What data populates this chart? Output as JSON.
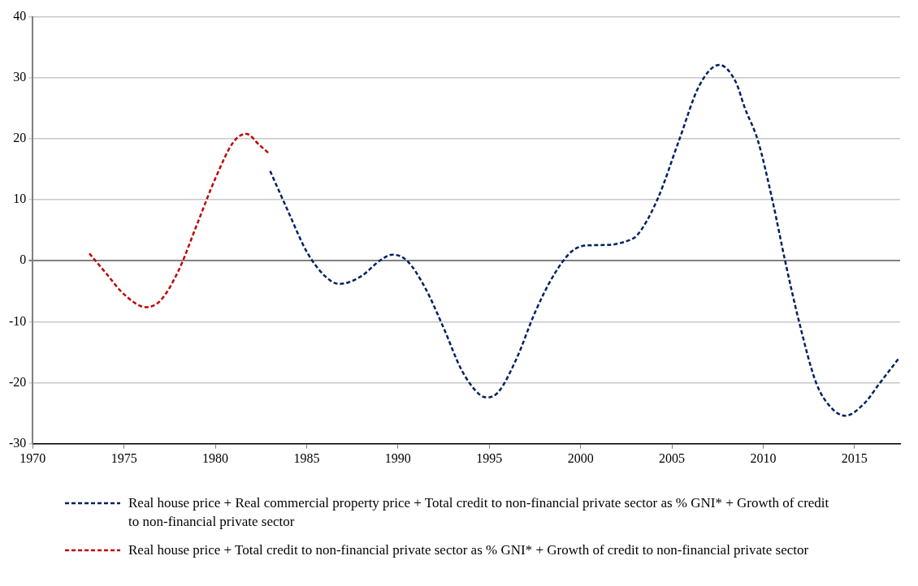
{
  "chart_data": {
    "type": "line",
    "xlim": [
      1970,
      2017.5
    ],
    "xticks": [
      1970,
      1975,
      1980,
      1985,
      1990,
      1995,
      2000,
      2005,
      2010,
      2015
    ],
    "ylim": [
      -30,
      40
    ],
    "yticks": [
      -30,
      -20,
      -10,
      0,
      10,
      20,
      30,
      40
    ],
    "grid": "y",
    "legend": "bottom",
    "line_style": "dashed",
    "marker": "none",
    "series": [
      {
        "name": "Real house price + Real commercial property price + Total credit to non-financial private sector as % GNI* + Growth of credit to non-financial private sector",
        "color": "#002060",
        "x": [
          1983,
          1984,
          1985,
          1986,
          1986.8,
          1988,
          1989,
          1989.7,
          1990.5,
          1991.5,
          1992.5,
          1993.5,
          1994.5,
          1994.9,
          1995.5,
          1996.5,
          1997.5,
          1998.5,
          1999.5,
          2000.3,
          2001.5,
          2002.5,
          2003.1,
          2004.2,
          2005.4,
          2006.5,
          2007.6,
          2008.5,
          2009,
          2009.7,
          2010.5,
          2011.2,
          2012,
          2012.9,
          2013.7,
          2014.5,
          2015.5,
          2016.4,
          2017.4
        ],
        "values": [
          14.7,
          8,
          1.5,
          -2.5,
          -3.8,
          -2.5,
          0,
          1,
          0,
          -4.5,
          -11,
          -18,
          -22,
          -22.4,
          -21.5,
          -16,
          -8.5,
          -2.5,
          1.5,
          2.5,
          2.6,
          3.2,
          4.2,
          10,
          19.8,
          28.7,
          32.1,
          29.3,
          25,
          19.8,
          10,
          0,
          -10.4,
          -20,
          -24,
          -25.4,
          -23.5,
          -20,
          -16.1
        ]
      },
      {
        "name": "Real house price + Total credit to non-financial private sector as % GNI* + Growth of credit to non-financial private sector",
        "color": "#c00000",
        "x": [
          1973.1,
          1974,
          1975,
          1976.2,
          1977,
          1978,
          1979,
          1980,
          1981,
          1981.7,
          1982.4,
          1982.9
        ],
        "values": [
          1.2,
          -2,
          -5.5,
          -7.6,
          -6.5,
          -1.5,
          6,
          13.5,
          19.5,
          20.8,
          19,
          17.7
        ]
      }
    ]
  }
}
